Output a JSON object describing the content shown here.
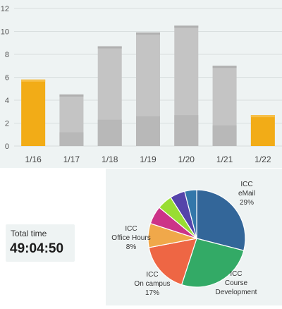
{
  "chart_data": [
    {
      "type": "bar",
      "categories": [
        "1/16",
        "1/17",
        "1/18",
        "1/19",
        "1/20",
        "1/21",
        "1/22"
      ],
      "values": [
        5.8,
        4.5,
        8.7,
        9.9,
        10.5,
        7.0,
        2.7
      ],
      "ylim": [
        0,
        12
      ],
      "yticks": [
        0,
        2,
        4,
        6,
        8,
        10,
        12
      ],
      "grid": true,
      "colors": {
        "highlight": "#f2ac17",
        "default": "#c4c4c4"
      },
      "highlighted": [
        "1/16",
        "1/22"
      ]
    },
    {
      "type": "pie",
      "slices": [
        {
          "label": "ICC eMail",
          "pct_label": "29%",
          "value": 29,
          "color": "#336699"
        },
        {
          "label": "ICC Course Development",
          "pct_label": "",
          "value": 26,
          "color": "#33aa66"
        },
        {
          "label": "ICC On campus",
          "pct_label": "17%",
          "value": 17,
          "color": "#ee6644"
        },
        {
          "label": "ICC Office Hours",
          "pct_label": "8%",
          "value": 8,
          "color": "#f0a84a"
        },
        {
          "label": "",
          "pct_label": "",
          "value": 6,
          "color": "#cc3388"
        },
        {
          "label": "",
          "pct_label": "",
          "value": 5,
          "color": "#99dd33"
        },
        {
          "label": "",
          "pct_label": "",
          "value": 5,
          "color": "#5544aa"
        },
        {
          "label": "",
          "pct_label": "",
          "value": 4,
          "color": "#3377aa"
        }
      ]
    }
  ],
  "total": {
    "label": "Total time",
    "value": "49:04:50"
  }
}
